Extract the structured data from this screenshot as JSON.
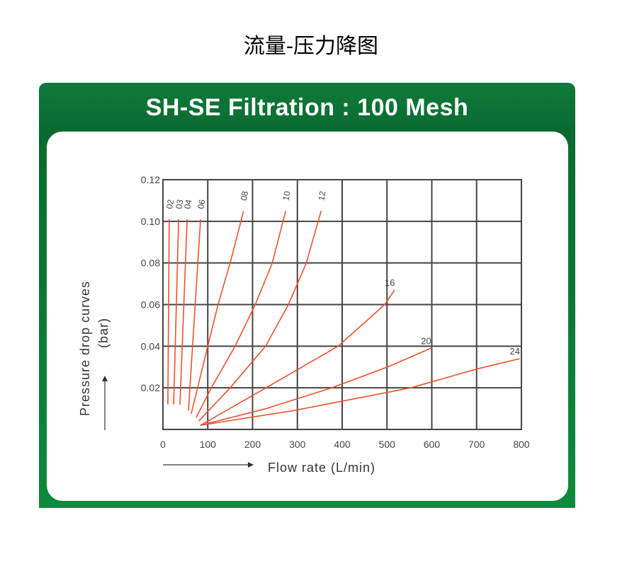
{
  "page_title": "流量-压力降图",
  "chart_data": {
    "type": "line",
    "title": "SH-SE Filtration : 100 Mesh",
    "xlabel": "Flow rate (L/min)",
    "ylabel_line1": "Pressure drop curves",
    "ylabel_line2": "(bar)",
    "xlim": [
      0,
      800
    ],
    "ylim": [
      0,
      0.12
    ],
    "x_ticks": [
      "0",
      "100",
      "200",
      "300",
      "400",
      "500",
      "600",
      "700",
      "800"
    ],
    "y_ticks": [
      "0.02",
      "0.04",
      "0.06",
      "0.08",
      "0.10",
      "0.12"
    ],
    "grid": true,
    "line_color": "#f0502a",
    "series": [
      {
        "name": "02",
        "points": [
          [
            11,
            0.012
          ],
          [
            14,
            0.101
          ]
        ]
      },
      {
        "name": "03",
        "points": [
          [
            24,
            0.012
          ],
          [
            35,
            0.101
          ]
        ]
      },
      {
        "name": "04",
        "points": [
          [
            38,
            0.012
          ],
          [
            54,
            0.101
          ]
        ]
      },
      {
        "name": "06",
        "points": [
          [
            57,
            0.009
          ],
          [
            84,
            0.101
          ]
        ]
      },
      {
        "name": "08",
        "points": [
          [
            63,
            0.0074
          ],
          [
            100,
            0.04
          ],
          [
            123,
            0.06
          ],
          [
            150,
            0.08
          ],
          [
            180,
            0.105
          ]
        ]
      },
      {
        "name": "10",
        "points": [
          [
            74,
            0.0057
          ],
          [
            108,
            0.02
          ],
          [
            161,
            0.04
          ],
          [
            206,
            0.06
          ],
          [
            244,
            0.08
          ],
          [
            274,
            0.105
          ]
        ]
      },
      {
        "name": "12",
        "points": [
          [
            80,
            0.004
          ],
          [
            150,
            0.02
          ],
          [
            229,
            0.04
          ],
          [
            280,
            0.06
          ],
          [
            320,
            0.08
          ],
          [
            353,
            0.105
          ]
        ]
      },
      {
        "name": "16",
        "points": [
          [
            84,
            0.002
          ],
          [
            230,
            0.02
          ],
          [
            391,
            0.04
          ],
          [
            495,
            0.06
          ],
          [
            517,
            0.067
          ]
        ]
      },
      {
        "name": "20",
        "points": [
          [
            84,
            0.002
          ],
          [
            230,
            0.01
          ],
          [
            377,
            0.02
          ],
          [
            501,
            0.03
          ],
          [
            598,
            0.039
          ]
        ]
      },
      {
        "name": "24",
        "points": [
          [
            84,
            0.002
          ],
          [
            290,
            0.009
          ],
          [
            553,
            0.02
          ],
          [
            700,
            0.029
          ],
          [
            796,
            0.034
          ]
        ]
      }
    ]
  }
}
